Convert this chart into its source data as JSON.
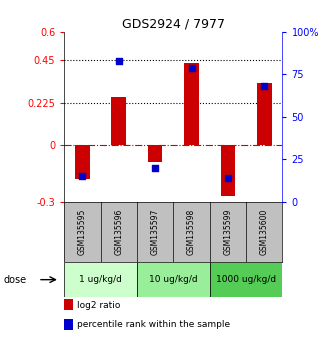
{
  "title": "GDS2924 / 7977",
  "samples": [
    "GSM135595",
    "GSM135596",
    "GSM135597",
    "GSM135598",
    "GSM135599",
    "GSM135600"
  ],
  "log2_ratio": [
    -0.18,
    0.255,
    -0.09,
    0.435,
    -0.27,
    0.33
  ],
  "percentile_rank": [
    15,
    83,
    20,
    79,
    14,
    68
  ],
  "doses": [
    {
      "label": "1 ug/kg/d",
      "color": "#ccffcc"
    },
    {
      "label": "10 ug/kg/d",
      "color": "#99ee99"
    },
    {
      "label": "1000 ug/kg/d",
      "color": "#55cc55"
    }
  ],
  "ylim_left": [
    -0.3,
    0.6
  ],
  "ylim_right": [
    0,
    100
  ],
  "yticks_left": [
    -0.3,
    0,
    0.225,
    0.45,
    0.6
  ],
  "yticks_right": [
    0,
    25,
    50,
    75,
    100
  ],
  "ytick_labels_left": [
    "-0.3",
    "0",
    "0.225",
    "0.45",
    "0.6"
  ],
  "ytick_labels_right": [
    "0",
    "25",
    "50",
    "75",
    "100%"
  ],
  "hlines": [
    0.225,
    0.45
  ],
  "bar_color": "#cc0000",
  "dot_color": "#0000cc",
  "zero_line_color": "#cc0000",
  "label_area_color": "#c0c0c0",
  "legend_items": [
    {
      "color": "#cc0000",
      "label": "log2 ratio"
    },
    {
      "color": "#0000cc",
      "label": "percentile rank within the sample"
    }
  ]
}
